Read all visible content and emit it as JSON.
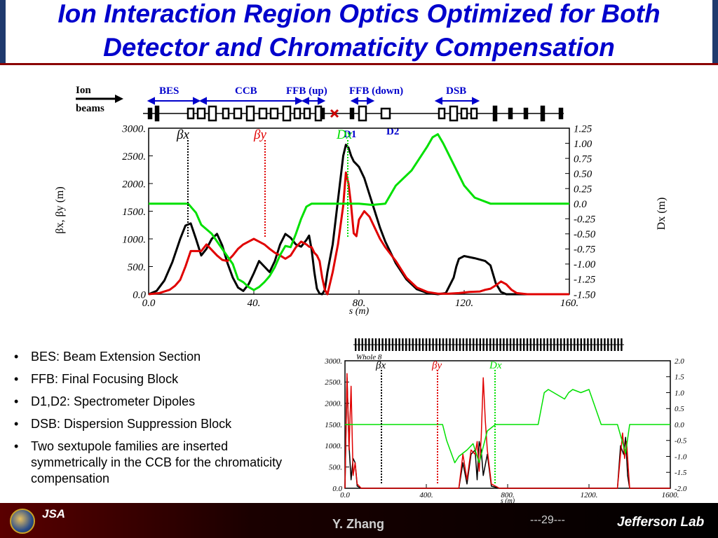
{
  "slide": {
    "title_line1": "Ion Interaction Region Optics Optimized for Both",
    "title_line2": "Detector and Chromaticity Compensation",
    "bullets": [
      "BES: Beam Extension Section",
      "FFB: Final Focusing Block",
      "D1,D2: Spectrometer Dipoles",
      "DSB: Dispersion Suppression Block",
      "Two sextupole families are inserted symmetrically in the CCB for the chromaticity compensation"
    ],
    "footer": {
      "author": "Y. Zhang",
      "page": "---29---",
      "lab": "Jefferson Lab",
      "logo_text": "JSA"
    },
    "colors": {
      "title": "#0000cc",
      "section_label": "#0000cc",
      "beta_x": "#000000",
      "beta_y": "#e00000",
      "dispersion": "#00e000",
      "footer_dark": "#5a0000"
    }
  },
  "diagram": {
    "ion_label_line1": "Ion",
    "ion_label_line2": "beams",
    "sections": [
      "BES",
      "CCB",
      "FFB (up)",
      "FFB (down)",
      "DSB"
    ],
    "dipoles": [
      "D1",
      "D2"
    ],
    "ip_marker_icon": "x-mark-icon"
  },
  "chart_data": [
    {
      "type": "line",
      "panel": "ion-ir-optics",
      "xlabel": "s (m)",
      "ylabel": "βx, βy (m)",
      "y2label": "Dx (m)",
      "xlim": [
        0,
        160
      ],
      "ylim": [
        0,
        3000
      ],
      "y2lim": [
        -1.5,
        1.25
      ],
      "x_ticks": [
        "0.0",
        "40.",
        "80.",
        "120.",
        "160."
      ],
      "y_ticks": [
        "0.0",
        "500.",
        "1000.",
        "1500.",
        "2000.",
        "2500.",
        "3000."
      ],
      "y2_ticks": [
        "-1.50",
        "-1.25",
        "-1.00",
        "-0.75",
        "-0.50",
        "-0.25",
        "0.0",
        "0.25",
        "0.50",
        "0.75",
        "1.00",
        "1.25"
      ],
      "legend_labels": [
        "βx",
        "βy",
        "Dx"
      ],
      "series": [
        {
          "name": "βx",
          "axis": "left",
          "x": [
            0,
            3,
            6,
            9,
            12,
            14,
            16,
            18,
            20,
            22,
            24,
            26,
            28,
            30,
            32,
            34,
            36,
            38,
            40,
            42,
            44,
            46,
            48,
            50,
            52,
            54,
            56,
            58,
            60,
            61,
            62,
            63,
            64,
            65,
            66,
            67,
            68,
            70,
            72,
            74,
            75,
            76,
            77,
            78,
            79,
            80,
            82,
            84,
            86,
            88,
            90,
            94,
            98,
            102,
            106,
            110,
            113,
            116,
            117,
            118,
            120,
            124,
            128,
            130,
            132,
            134,
            136,
            140,
            146,
            152,
            156,
            160
          ],
          "y": [
            0,
            60,
            250,
            580,
            1000,
            1240,
            1280,
            1000,
            700,
            820,
            1000,
            1090,
            880,
            560,
            300,
            120,
            60,
            180,
            380,
            600,
            500,
            400,
            600,
            900,
            1090,
            1020,
            900,
            860,
            980,
            1060,
            800,
            400,
            100,
            10,
            0,
            80,
            400,
            900,
            1700,
            2500,
            2700,
            2650,
            2500,
            2400,
            2350,
            2300,
            2100,
            1800,
            1500,
            1200,
            950,
            560,
            270,
            90,
            20,
            0,
            20,
            300,
            500,
            640,
            690,
            650,
            600,
            520,
            200,
            40,
            0,
            0,
            0,
            0,
            0,
            0
          ]
        },
        {
          "name": "βy",
          "axis": "left",
          "x": [
            0,
            4,
            8,
            10,
            12,
            14,
            16,
            18,
            20,
            22,
            24,
            26,
            28,
            30,
            32,
            34,
            36,
            38,
            40,
            42,
            44,
            46,
            48,
            50,
            52,
            54,
            56,
            58,
            60,
            61,
            62,
            63,
            64,
            65,
            66,
            67,
            68,
            70,
            72,
            74,
            75,
            76,
            77,
            78,
            79,
            80,
            82,
            84,
            86,
            88,
            90,
            94,
            98,
            102,
            106,
            110,
            114,
            118,
            122,
            126,
            128,
            130,
            132,
            134,
            136,
            138,
            140,
            144,
            150,
            156,
            160
          ],
          "y": [
            0,
            20,
            80,
            150,
            260,
            500,
            780,
            780,
            780,
            900,
            800,
            700,
            620,
            600,
            700,
            820,
            900,
            950,
            1000,
            950,
            900,
            820,
            750,
            700,
            640,
            700,
            850,
            950,
            900,
            860,
            850,
            750,
            700,
            600,
            300,
            80,
            0,
            400,
            900,
            1600,
            2200,
            2000,
            1600,
            1100,
            1050,
            1350,
            1500,
            1400,
            1200,
            1000,
            850,
            600,
            300,
            120,
            40,
            10,
            10,
            20,
            40,
            50,
            80,
            100,
            160,
            230,
            180,
            80,
            20,
            0,
            0,
            0,
            0
          ]
        },
        {
          "name": "Dx",
          "axis": "right",
          "x": [
            0,
            10,
            15,
            18,
            20,
            24,
            28,
            32,
            34,
            36,
            38,
            40,
            42,
            44,
            46,
            48,
            50,
            52,
            54,
            56,
            58,
            60,
            62,
            64,
            66,
            70,
            75,
            80,
            85,
            90,
            94,
            100,
            106,
            108,
            110,
            112,
            116,
            120,
            124,
            130,
            140,
            150,
            160
          ],
          "y": [
            0,
            0,
            0,
            -0.15,
            -0.35,
            -0.5,
            -0.75,
            -1.0,
            -1.25,
            -1.3,
            -1.38,
            -1.43,
            -1.38,
            -1.3,
            -1.2,
            -1.05,
            -0.85,
            -0.7,
            -0.72,
            -0.5,
            -0.25,
            -0.05,
            0,
            0,
            0,
            0,
            0,
            0,
            -0.02,
            0,
            0.3,
            0.55,
            0.95,
            1.1,
            1.15,
            1.0,
            0.65,
            0.3,
            0.1,
            0,
            0,
            0,
            0
          ]
        }
      ]
    },
    {
      "type": "line",
      "panel": "whole-ring-optics",
      "title": "Whole 8",
      "xlabel": "s (m)",
      "xlim": [
        0,
        1600
      ],
      "ylim": [
        0,
        3000
      ],
      "y2lim": [
        -2.0,
        2.0
      ],
      "x_ticks": [
        "0.0",
        "400.",
        "800.",
        "1200.",
        "1600."
      ],
      "y_ticks": [
        "0.0",
        "500.",
        "1000.",
        "1500.",
        "2000.",
        "2500.",
        "3000."
      ],
      "y2_ticks": [
        "-2.0",
        "-1.5",
        "-1.0",
        "-0.5",
        "0.0",
        "0.5",
        "1.0",
        "1.5",
        "2.0"
      ],
      "legend_labels": [
        "βx",
        "βy",
        "Dx"
      ],
      "series": [
        {
          "name": "βx",
          "axis": "left",
          "x": [
            0,
            10,
            20,
            30,
            40,
            50,
            60,
            80,
            120,
            200,
            300,
            400,
            500,
            560,
            580,
            600,
            620,
            640,
            650,
            660,
            670,
            680,
            700,
            720,
            760,
            800,
            900,
            1000,
            1100,
            1200,
            1300,
            1340,
            1355,
            1370,
            1380,
            1390,
            1400,
            1600
          ],
          "y": [
            0,
            2600,
            1000,
            200,
            700,
            600,
            50,
            0,
            0,
            0,
            0,
            0,
            0,
            0,
            600,
            100,
            800,
            900,
            200,
            1100,
            900,
            300,
            800,
            50,
            0,
            0,
            0,
            0,
            0,
            0,
            0,
            0,
            1000,
            800,
            1200,
            300,
            0,
            0
          ]
        },
        {
          "name": "βy",
          "axis": "left",
          "x": [
            0,
            10,
            20,
            30,
            40,
            50,
            60,
            80,
            120,
            200,
            300,
            400,
            500,
            560,
            580,
            600,
            620,
            640,
            650,
            660,
            670,
            680,
            690,
            700,
            720,
            760,
            800,
            900,
            1000,
            1100,
            1200,
            1300,
            1340,
            1355,
            1365,
            1375,
            1385,
            1400,
            1600
          ],
          "y": [
            0,
            2700,
            900,
            2400,
            300,
            600,
            100,
            0,
            0,
            0,
            0,
            0,
            0,
            0,
            800,
            200,
            900,
            800,
            1100,
            400,
            1200,
            2600,
            1600,
            900,
            100,
            0,
            0,
            0,
            0,
            0,
            0,
            0,
            0,
            800,
            1300,
            700,
            1100,
            0,
            0
          ]
        },
        {
          "name": "Dx",
          "axis": "right",
          "x": [
            0,
            100,
            200,
            300,
            400,
            450,
            480,
            500,
            540,
            560,
            600,
            630,
            660,
            700,
            740,
            800,
            900,
            950,
            980,
            1000,
            1080,
            1100,
            1120,
            1160,
            1200,
            1260,
            1340,
            1380,
            1400,
            1600
          ],
          "y": [
            0,
            0,
            0,
            0,
            0,
            0,
            0,
            -0.5,
            -1.2,
            -1.0,
            -0.8,
            -0.6,
            -1.2,
            -0.2,
            0,
            0,
            0,
            0,
            1.0,
            1.1,
            0.8,
            1.0,
            1.1,
            1.0,
            1.1,
            0,
            0,
            -0.9,
            0,
            0
          ]
        }
      ]
    }
  ]
}
